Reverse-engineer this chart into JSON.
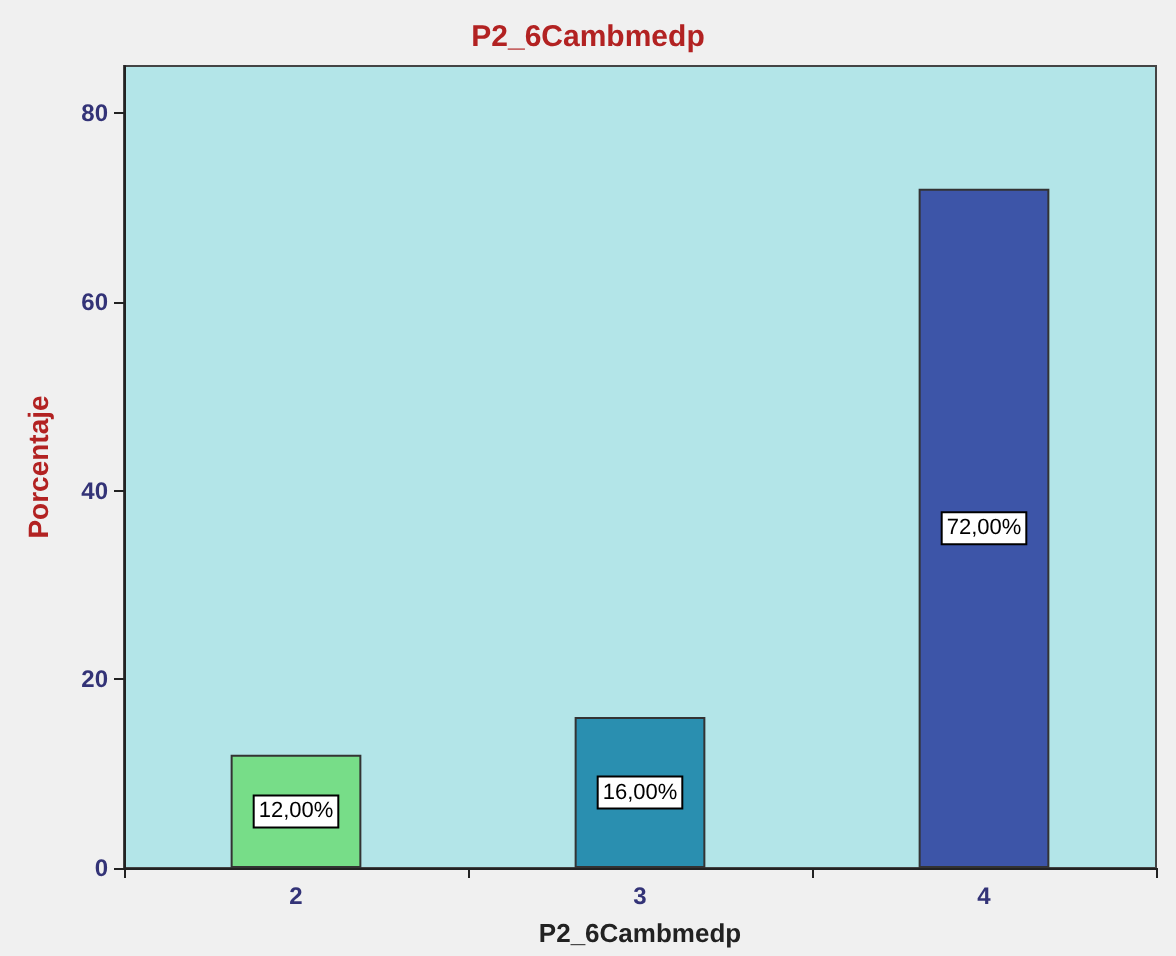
{
  "chart_data": {
    "type": "bar",
    "title": "P2_6Cambmedp",
    "xlabel": "P2_6Cambmedp",
    "ylabel": "Porcentaje",
    "categories": [
      "2",
      "3",
      "4"
    ],
    "values": [
      12,
      16,
      72
    ],
    "colors": [
      "#77dd88",
      "#2a8fb0",
      "#3d55a8"
    ],
    "value_labels": [
      "12,00%",
      "16,00%",
      "72,00%"
    ],
    "ylim": [
      0,
      85
    ],
    "yticks": [
      0,
      20,
      40,
      60,
      80
    ],
    "grid": false
  }
}
